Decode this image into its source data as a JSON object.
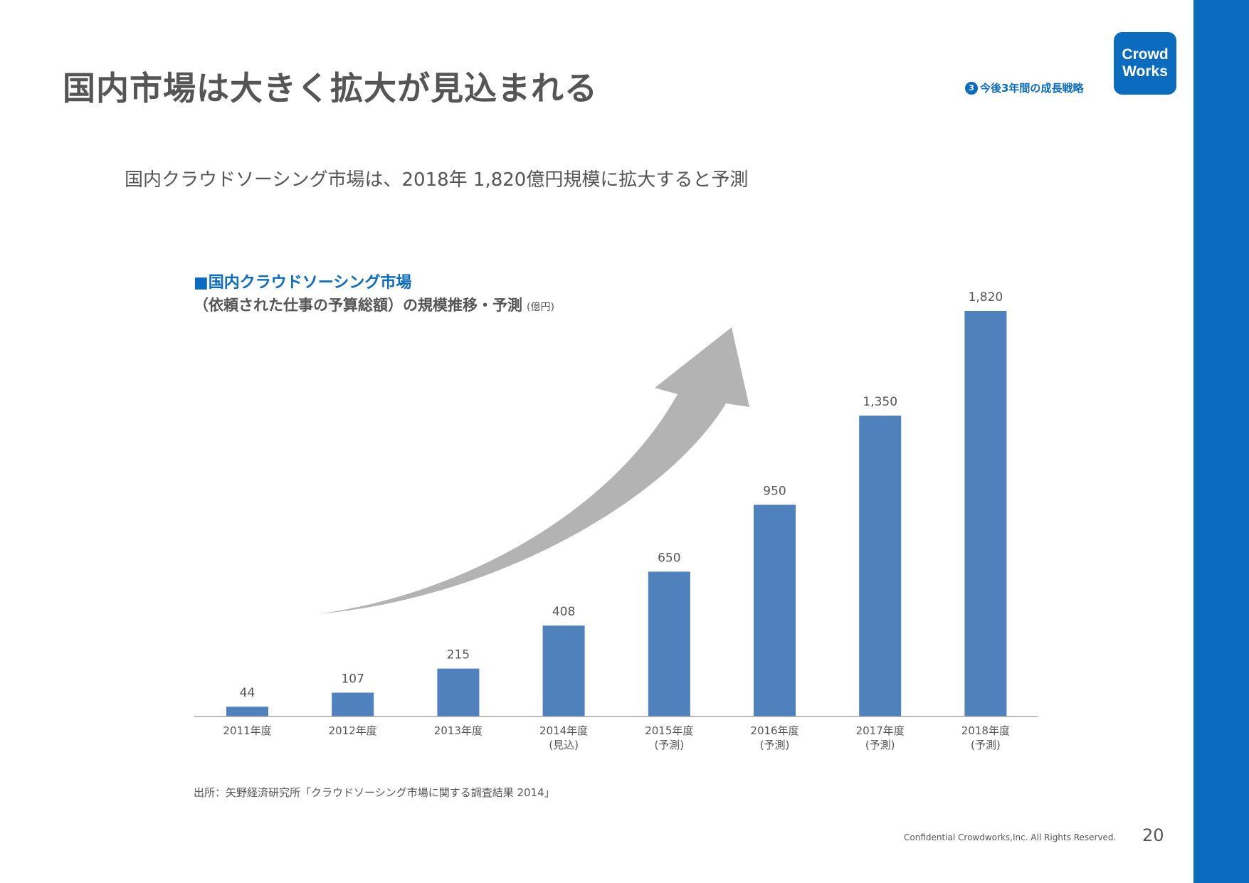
{
  "slide": {
    "title": "国内市場は大きく拡大が見込まれる",
    "section_number": "3",
    "section_label": "今後3年間の成長戦略",
    "logo_line1": "Crowd",
    "logo_line2": "Works",
    "subtitle": "国内クラウドソーシング市場は、2018年 1,820億円規模に拡大すると予測",
    "source": "出所：矢野経済研究所「クラウドソーシング市場に関する調査結果 2014」",
    "footer": "Confidential Crowdworks,Inc. All Rights Reserved.",
    "page_number": "20"
  },
  "colors": {
    "brand": "#0a6bbf",
    "bar": "#4f81bd",
    "arrow": "#b3b3b3",
    "text": "#555555"
  },
  "chart_data": {
    "type": "bar",
    "title": "■国内クラウドソーシング市場",
    "subtitle": "（依頼された仕事の予算総額）の規模推移・予測",
    "unit": "(億円)",
    "categories": [
      [
        "2011年度"
      ],
      [
        "2012年度"
      ],
      [
        "2013年度"
      ],
      [
        "2014年度",
        "(見込)"
      ],
      [
        "2015年度",
        "(予測)"
      ],
      [
        "2016年度",
        "(予測)"
      ],
      [
        "2017年度",
        "(予測)"
      ],
      [
        "2018年度",
        "(予測)"
      ]
    ],
    "values": [
      44,
      107,
      215,
      408,
      650,
      950,
      1350,
      1820
    ],
    "value_labels": [
      "44",
      "107",
      "215",
      "408",
      "650",
      "950",
      "1,350",
      "1,820"
    ],
    "ylim": [
      0,
      1820
    ],
    "grid": false,
    "annotation": "up-arrow"
  }
}
